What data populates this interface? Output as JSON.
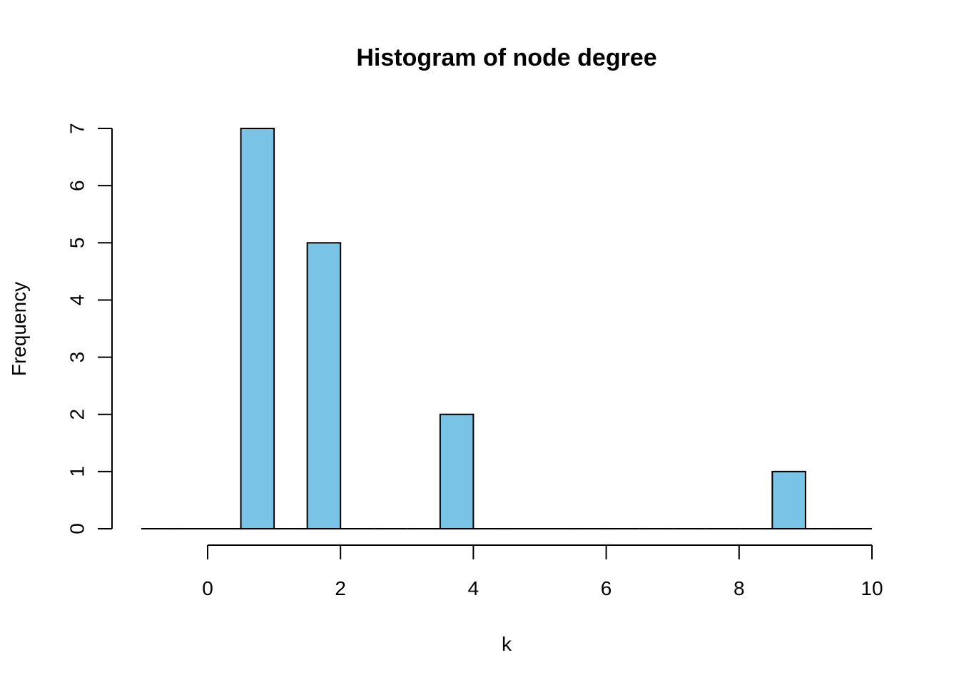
{
  "chart_data": {
    "type": "bar",
    "title": "Histogram of node degree",
    "xlabel": "k",
    "ylabel": "Frequency",
    "bar_color": "#79C3E6",
    "bins": [
      {
        "x0": -1.0,
        "x1": -0.5,
        "count": 0
      },
      {
        "x0": -0.5,
        "x1": 0.0,
        "count": 0
      },
      {
        "x0": 0.0,
        "x1": 0.5,
        "count": 0
      },
      {
        "x0": 0.5,
        "x1": 1.0,
        "count": 7
      },
      {
        "x0": 1.0,
        "x1": 1.5,
        "count": 0
      },
      {
        "x0": 1.5,
        "x1": 2.0,
        "count": 5
      },
      {
        "x0": 2.0,
        "x1": 2.5,
        "count": 0
      },
      {
        "x0": 2.5,
        "x1": 3.0,
        "count": 0
      },
      {
        "x0": 3.0,
        "x1": 3.5,
        "count": 0
      },
      {
        "x0": 3.5,
        "x1": 4.0,
        "count": 2
      },
      {
        "x0": 4.0,
        "x1": 4.5,
        "count": 0
      },
      {
        "x0": 4.5,
        "x1": 5.0,
        "count": 0
      },
      {
        "x0": 5.0,
        "x1": 5.5,
        "count": 0
      },
      {
        "x0": 5.5,
        "x1": 6.0,
        "count": 0
      },
      {
        "x0": 6.0,
        "x1": 6.5,
        "count": 0
      },
      {
        "x0": 6.5,
        "x1": 7.0,
        "count": 0
      },
      {
        "x0": 7.0,
        "x1": 7.5,
        "count": 0
      },
      {
        "x0": 7.5,
        "x1": 8.0,
        "count": 0
      },
      {
        "x0": 8.0,
        "x1": 8.5,
        "count": 0
      },
      {
        "x0": 8.5,
        "x1": 9.0,
        "count": 1
      },
      {
        "x0": 9.0,
        "x1": 9.5,
        "count": 0
      },
      {
        "x0": 9.5,
        "x1": 10.0,
        "count": 0
      }
    ],
    "xlim": [
      -1,
      10
    ],
    "ylim": [
      0,
      7
    ],
    "x_ticks": [
      0,
      2,
      4,
      6,
      8,
      10
    ],
    "y_ticks": [
      0,
      1,
      2,
      3,
      4,
      5,
      6,
      7
    ],
    "grid": false
  }
}
